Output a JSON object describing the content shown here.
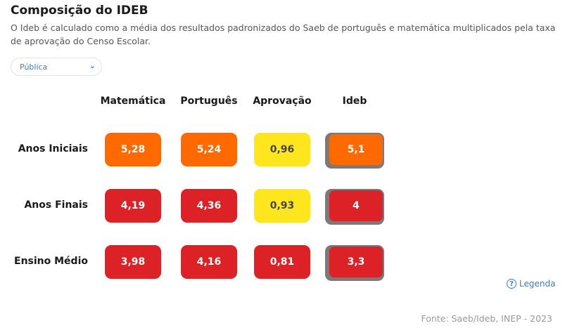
{
  "title": "Composição do IDEB",
  "description": "O Ideb é calculado como a média dos resultados padronizados do Saeb de português e matemática multiplicados pela taxa de aprovação do Censo Escolar.",
  "filter": {
    "selected": "Pública"
  },
  "columns": [
    "Matemática",
    "Português",
    "Aprovação",
    "Ideb"
  ],
  "colors": {
    "orange": "#ff6a00",
    "red": "#dd2227",
    "yellow": "#fde61e",
    "ideb_border": "#7a7a7a"
  },
  "rows": [
    {
      "label": "Anos Iniciais",
      "values": [
        "5,28",
        "5,24",
        "0,96",
        "5,1"
      ],
      "colors": [
        "orange",
        "orange",
        "yellow",
        "orange"
      ]
    },
    {
      "label": "Anos Finais",
      "values": [
        "4,19",
        "4,36",
        "0,93",
        "4"
      ],
      "colors": [
        "red",
        "red",
        "yellow",
        "red"
      ]
    },
    {
      "label": "Ensino Médio",
      "values": [
        "3,98",
        "4,16",
        "0,81",
        "3,3"
      ],
      "colors": [
        "red",
        "red",
        "red",
        "red"
      ]
    }
  ],
  "legend_label": "Legenda",
  "source": "Fonte: Saeb/Ideb, INEP - 2023"
}
